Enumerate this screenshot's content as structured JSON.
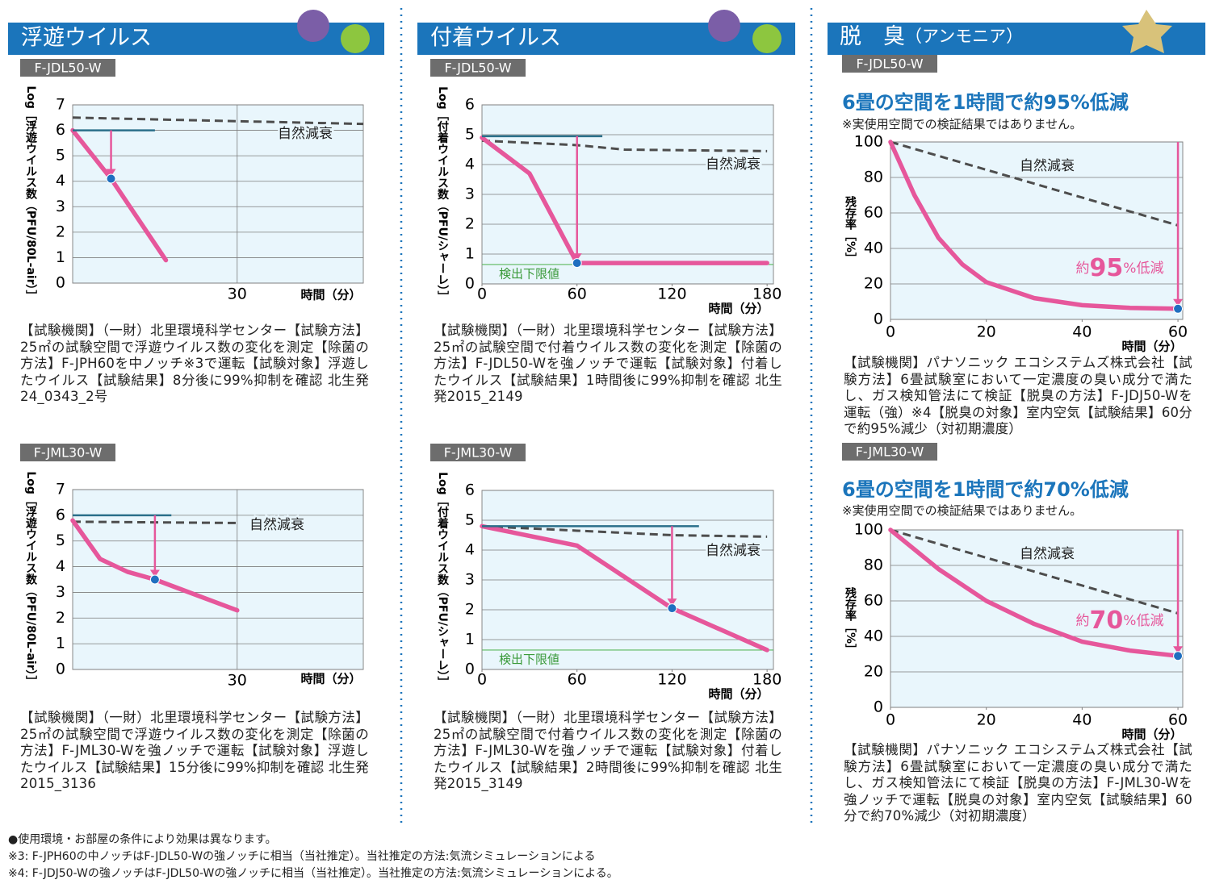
{
  "sections": [
    {
      "title": "浮遊ウイルス"
    },
    {
      "title": "付着ウイルス"
    },
    {
      "title": "脱　臭",
      "subtitle": "（アンモニア）"
    }
  ],
  "chart_data": [
    {
      "type": "line",
      "model": "F-JDL50-W",
      "ylabel": "Log［浮遊ウイルス数（PFU/80L-air）］",
      "xlabel": "時間（分）",
      "xlim": [
        0,
        53
      ],
      "ylim": [
        0,
        7
      ],
      "xticks": [
        30
      ],
      "yticks": [
        0,
        1,
        2,
        3,
        4,
        5,
        6,
        7
      ],
      "xgrid": true,
      "series": [
        {
          "name": "自然減衰",
          "color": "#4d4d4d",
          "dashed": true,
          "x": [
            0,
            53
          ],
          "values": [
            6.5,
            6.25
          ]
        },
        {
          "color": "#e6579b",
          "x": [
            0,
            7,
            17
          ],
          "values": [
            6,
            4.1,
            0.9
          ]
        }
      ],
      "reference_line": {
        "value": 6,
        "x": [
          0,
          15
        ],
        "color": "#2a6f8a"
      },
      "arrow": {
        "x": 7,
        "from": 6,
        "to": 4.1
      },
      "description": "【試験機関】（一財）北里環境科学センター【試験方法】25㎡の試験空間で浮遊ウイルス数の変化を測定【除菌の方法】F-JPH60を中ノッチ※3で運転【試験対象】浮遊したウイルス【試験結果】8分後に99%抑制を確認 北生発24_0343_2号"
    },
    {
      "type": "line",
      "model": "F-JDL50-W",
      "ylabel": "Log［付着ウイルス数（PFU/シャーレ）］",
      "xlabel": "時間（分）",
      "xlim": [
        0,
        184
      ],
      "ylim": [
        0,
        6
      ],
      "xticks": [
        0,
        60,
        120,
        180
      ],
      "yticks": [
        0,
        1,
        2,
        3,
        4,
        5,
        6
      ],
      "xgrid": false,
      "series": [
        {
          "name": "自然減衰",
          "color": "#4d4d4d",
          "dashed": true,
          "x": [
            0,
            60,
            90,
            180
          ],
          "values": [
            4.8,
            4.65,
            4.5,
            4.45
          ]
        },
        {
          "color": "#e6579b",
          "x": [
            0,
            30,
            60,
            180
          ],
          "values": [
            4.9,
            3.7,
            0.7,
            0.7
          ]
        }
      ],
      "reference_line": {
        "value": 4.95,
        "x": [
          0,
          76
        ],
        "color": "#2a6f8a"
      },
      "arrow": {
        "x": 60,
        "from": 4.95,
        "to": 0.7
      },
      "detection_limit": {
        "value": 0.65,
        "label": "検出下限値",
        "color": "#5cb85c"
      },
      "description": "【試験機関】（一財）北里環境科学センター【試験方法】25㎡の試験空間で付着ウイルス数の変化を測定【除菌の方法】F-JDL50-Wを強ノッチで運転【試験対象】付着したウイルス【試験結果】1時間後に99%抑制を確認 北生発2015_2149"
    },
    {
      "type": "line",
      "model": "F-JDL50-W",
      "headline": "6畳の空間を1時間で約95%低減",
      "note": "※実使用空間での検証結果ではありません。",
      "ylabel": "残存率［%］",
      "xlabel": "時間（分）",
      "xlim": [
        0,
        61
      ],
      "ylim": [
        0,
        100
      ],
      "xticks": [
        0,
        20,
        40,
        60
      ],
      "yticks": [
        0,
        20,
        40,
        60,
        80,
        100
      ],
      "xgrid": false,
      "series": [
        {
          "name": "自然減衰",
          "color": "#4d4d4d",
          "dashed": true,
          "x": [
            0,
            60
          ],
          "values": [
            100,
            53
          ]
        },
        {
          "color": "#e6579b",
          "x": [
            0,
            5,
            10,
            15,
            20,
            30,
            40,
            50,
            60
          ],
          "values": [
            100,
            70,
            46,
            31,
            21,
            12,
            8,
            6.5,
            6
          ]
        }
      ],
      "arrow": {
        "x": 60,
        "from": 100,
        "to": 6
      },
      "reduction_label": [
        "約",
        "95",
        "%低減"
      ],
      "description": "【試験機関】パナソニック エコシステムズ株式会社【試験方法】6畳試験室において一定濃度の臭い成分で満たし、ガス検知管法にて検証【脱臭の方法】F-JDJ50-Wを運転（強）※4【脱臭の対象】室内空気【試験結果】60分で約95%減少（対初期濃度）"
    },
    {
      "type": "line",
      "model": "F-JML30-W",
      "ylabel": "Log［浮遊ウイルス数（PFU/80L-air）］",
      "xlabel": "時間（分）",
      "xlim": [
        0,
        53
      ],
      "ylim": [
        0,
        7
      ],
      "xticks": [
        30
      ],
      "yticks": [
        0,
        1,
        2,
        3,
        4,
        5,
        6,
        7
      ],
      "xgrid": true,
      "series": [
        {
          "name": "自然減衰",
          "color": "#4d4d4d",
          "dashed": true,
          "x": [
            0,
            30
          ],
          "values": [
            5.75,
            5.7
          ]
        },
        {
          "color": "#e6579b",
          "x": [
            0,
            5,
            10,
            15,
            20,
            30
          ],
          "values": [
            5.8,
            4.3,
            3.8,
            3.5,
            3.1,
            2.3
          ]
        }
      ],
      "reference_line": {
        "value": 6,
        "x": [
          0,
          18
        ],
        "color": "#2a6f8a"
      },
      "arrow": {
        "x": 15,
        "from": 6,
        "to": 3.5
      },
      "description": "【試験機関】（一財）北里環境科学センター【試験方法】25㎡の試験空間で浮遊ウイルス数の変化を測定【除菌の方法】F-JML30-Wを強ノッチで運転【試験対象】浮遊したウイルス【試験結果】15分後に99%抑制を確認 北生発2015_3136"
    },
    {
      "type": "line",
      "model": "F-JML30-W",
      "ylabel": "Log［付着ウイルス数（PFU/シャーレ）］",
      "xlabel": "時間（分）",
      "xlim": [
        0,
        184
      ],
      "ylim": [
        0,
        6
      ],
      "xticks": [
        0,
        60,
        120,
        180
      ],
      "yticks": [
        0,
        1,
        2,
        3,
        4,
        5,
        6
      ],
      "xgrid": false,
      "series": [
        {
          "name": "自然減衰",
          "color": "#4d4d4d",
          "dashed": true,
          "x": [
            0,
            60,
            120,
            180
          ],
          "values": [
            4.8,
            4.65,
            4.5,
            4.45
          ]
        },
        {
          "color": "#e6579b",
          "x": [
            0,
            60,
            120,
            180
          ],
          "values": [
            4.8,
            4.15,
            2.05,
            0.65
          ]
        }
      ],
      "reference_line": {
        "value": 4.8,
        "x": [
          0,
          137
        ],
        "color": "#2a6f8a"
      },
      "arrow": {
        "x": 120,
        "from": 4.8,
        "to": 2.05
      },
      "detection_limit": {
        "value": 0.65,
        "label": "検出下限値",
        "color": "#5cb85c"
      },
      "description": "【試験機関】（一財）北里環境科学センター【試験方法】25㎡の試験空間で付着ウイルス数の変化を測定【除菌の方法】F-JML30-Wを強ノッチで運転【試験対象】付着したウイルス【試験結果】2時間後に99%抑制を確認 北生発2015_3149"
    },
    {
      "type": "line",
      "model": "F-JML30-W",
      "headline": "6畳の空間を1時間で約70%低減",
      "note": "※実使用空間での検証結果ではありません。",
      "ylabel": "残存率［%］",
      "xlabel": "時間（分）",
      "xlim": [
        0,
        61
      ],
      "ylim": [
        0,
        100
      ],
      "xticks": [
        0,
        20,
        40,
        60
      ],
      "yticks": [
        0,
        20,
        40,
        60,
        80,
        100
      ],
      "xgrid": false,
      "series": [
        {
          "name": "自然減衰",
          "color": "#4d4d4d",
          "dashed": true,
          "x": [
            0,
            60
          ],
          "values": [
            100,
            53
          ]
        },
        {
          "color": "#e6579b",
          "x": [
            0,
            10,
            20,
            30,
            40,
            50,
            60
          ],
          "values": [
            100,
            78,
            60,
            47,
            37,
            32,
            29
          ]
        }
      ],
      "arrow": {
        "x": 60,
        "from": 100,
        "to": 29
      },
      "reduction_label": [
        "約",
        "70",
        "%低減"
      ],
      "description": "【試験機関】パナソニック エコシステムズ株式会社【試験方法】6畳試験室において一定濃度の臭い成分で満たし、ガス検知管法にて検証【脱臭の方法】F-JML30-Wを強ノッチで運転【脱臭の対象】室内空気【試験結果】60分で約70%減少（対初期濃度）"
    }
  ],
  "footnotes": [
    "●使用環境・お部屋の条件により効果は異なります。",
    "※3: F-JPH60の中ノッチはF-JDL50-Wの強ノッチに相当（当社推定）。当社推定の方法:気流シミュレーションによる",
    "※4: F-JDJ50-Wの強ノッチはF-JDL50-Wの強ノッチに相当（当社推定）。当社推定の方法:気流シミュレーションによる。"
  ]
}
